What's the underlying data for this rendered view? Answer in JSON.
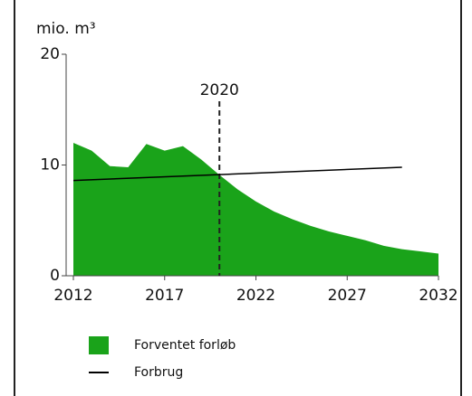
{
  "chart_data": {
    "type": "area",
    "y_label": "mio. m³",
    "xlim": [
      2012,
      2032
    ],
    "xticks": [
      2012,
      2017,
      2022,
      2027,
      2032
    ],
    "ylim": [
      0,
      20
    ],
    "yticks": [
      0,
      10,
      20
    ],
    "annotation": 2020,
    "series": [
      {
        "name": "Forventet forløb",
        "color": "#1aa31a",
        "kind": "area",
        "x": [
          2012,
          2013,
          2014,
          2015,
          2016,
          2017,
          2018,
          2019,
          2020,
          2021,
          2022,
          2023,
          2024,
          2025,
          2026,
          2027,
          2028,
          2029,
          2030,
          2031,
          2032
        ],
        "values": [
          12,
          11.3,
          9.9,
          9.8,
          11.9,
          11.3,
          11.7,
          10.5,
          9.1,
          7.8,
          6.7,
          5.8,
          5.1,
          4.5,
          4.0,
          3.6,
          3.2,
          2.7,
          2.4,
          2.2,
          2.0
        ]
      },
      {
        "name": "Forbrug",
        "color": "#000000",
        "kind": "line",
        "x": [
          2012,
          2030
        ],
        "values": [
          8.6,
          9.8
        ]
      }
    ]
  }
}
